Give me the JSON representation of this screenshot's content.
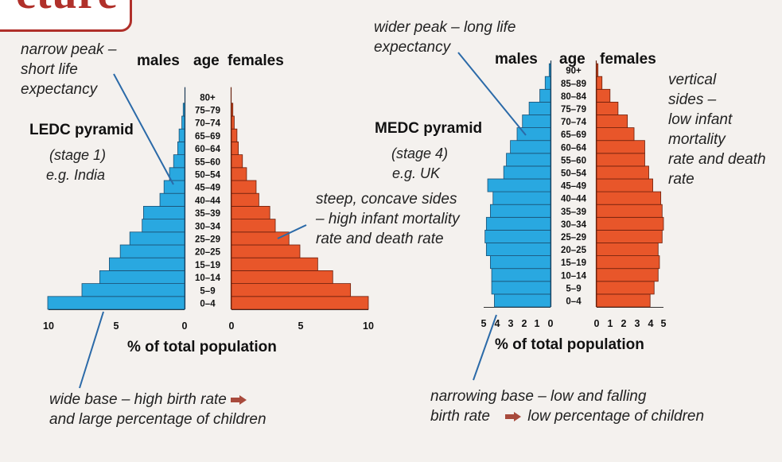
{
  "banner": {
    "text": "cture"
  },
  "chart_data": [
    {
      "type": "bar",
      "title": "LEDC pyramid",
      "subtitle": [
        "(stage 1)",
        "e.g. India"
      ],
      "header": {
        "left": "males",
        "mid": "age",
        "right": "females"
      },
      "categories": [
        "0–4",
        "5–9",
        "10–14",
        "15–19",
        "20–25",
        "25–29",
        "30–34",
        "35–39",
        "40–44",
        "45–49",
        "50–54",
        "55–60",
        "60–64",
        "65–69",
        "70–74",
        "75–79",
        "80+"
      ],
      "series": [
        {
          "name": "males",
          "values": [
            10.0,
            7.5,
            6.2,
            5.5,
            4.7,
            4.0,
            3.1,
            3.0,
            1.8,
            1.5,
            1.1,
            0.8,
            0.5,
            0.4,
            0.2,
            0.1,
            0.0
          ]
        },
        {
          "name": "females",
          "values": [
            10.0,
            8.7,
            7.4,
            6.3,
            5.0,
            4.2,
            3.2,
            2.8,
            2.0,
            1.8,
            1.1,
            0.8,
            0.5,
            0.4,
            0.2,
            0.1,
            0.0
          ]
        }
      ],
      "xlabel": "% of total population",
      "xticks_left": [
        "10",
        "5",
        "0"
      ],
      "xticks_right": [
        "0",
        "5",
        "10"
      ],
      "xlim": [
        0,
        10
      ],
      "colors": {
        "males": "#29a8e0",
        "females": "#e8562a"
      }
    },
    {
      "type": "bar",
      "title": "MEDC pyramid",
      "subtitle": [
        "(stage 4)",
        "e.g. UK"
      ],
      "header": {
        "left": "males",
        "mid": "age",
        "right": "females"
      },
      "categories": [
        "0–4",
        "5–9",
        "10–14",
        "15–19",
        "20–25",
        "25–29",
        "30–34",
        "35–39",
        "40–44",
        "45–49",
        "50–54",
        "55–60",
        "60–64",
        "65–69",
        "70–74",
        "75–79",
        "80–84",
        "85–89",
        "90+"
      ],
      "series": [
        {
          "name": "males",
          "values": [
            4.2,
            4.4,
            4.4,
            4.5,
            4.8,
            4.9,
            4.8,
            4.5,
            4.3,
            4.7,
            3.5,
            3.3,
            3.0,
            2.5,
            2.1,
            1.6,
            0.8,
            0.4,
            0.1
          ]
        },
        {
          "name": "females",
          "values": [
            4.0,
            4.3,
            4.6,
            4.7,
            4.6,
            4.9,
            5.0,
            4.9,
            4.8,
            4.2,
            3.9,
            3.6,
            3.6,
            2.8,
            2.3,
            1.6,
            1.0,
            0.4,
            0.1
          ]
        }
      ],
      "xlabel": "% of total population",
      "xticks_left": [
        "5",
        "4",
        "3",
        "2",
        "1",
        "0"
      ],
      "xticks_right": [
        "0",
        "1",
        "2",
        "3",
        "4",
        "5"
      ],
      "xlim": [
        0,
        5
      ],
      "colors": {
        "males": "#29a8e0",
        "females": "#e8562a"
      }
    }
  ],
  "annotations": {
    "narrow_peak": [
      "narrow peak –",
      "short life",
      "expectancy"
    ],
    "steep_sides": [
      "steep, concave sides",
      "– high infant mortality",
      "rate and death rate"
    ],
    "wide_base": [
      "wide base – high birth rate",
      "and large percentage of children"
    ],
    "wider_peak": [
      "wider peak – long life",
      "expectancy"
    ],
    "vertical_sides": [
      "vertical",
      "sides –",
      "low infant",
      "mortality",
      "rate and death",
      "rate"
    ],
    "narrowing_base_1": "narrowing base – low and falling",
    "narrowing_base_2a": "birth rate",
    "narrowing_base_2b": "low percentage of children"
  },
  "icons": {
    "arrow": "right-arrow-icon"
  }
}
